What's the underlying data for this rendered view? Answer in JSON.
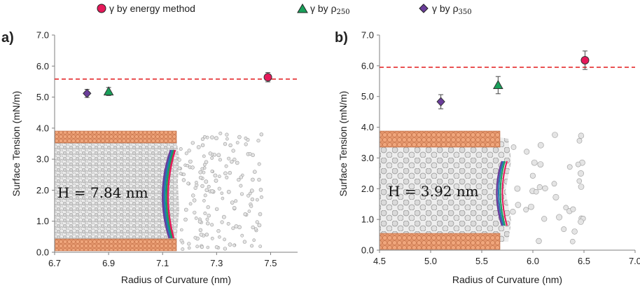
{
  "legend": {
    "energy": "γ by energy method",
    "rho250_prefix": "γ by ρ",
    "rho250_sub": "250",
    "rho350_prefix": "γ by ρ",
    "rho350_sub": "350"
  },
  "colors": {
    "energy": "#e6195a",
    "rho250": "#19a05a",
    "rho350": "#6a3d9a",
    "reference_line": "#e31a1c",
    "wall": "#e8946a",
    "molecule": "#d9d9d9"
  },
  "chart_data": [
    {
      "type": "scatter",
      "panel_label": "a)",
      "xlabel": "Radius of Curvature (nm)",
      "ylabel": "Surface Tension  (mN/m)",
      "xlim": [
        6.7,
        7.6
      ],
      "ylim": [
        0.0,
        7.0
      ],
      "x_ticks": [
        "6.7",
        "6.9",
        "7.1",
        "7.3",
        "7.5"
      ],
      "y_ticks": [
        "0.0",
        "1.0",
        "2.0",
        "3.0",
        "4.0",
        "5.0",
        "6.0",
        "7.0"
      ],
      "reference_line": 5.58,
      "inset_label": "H = 7.84 nm",
      "series": [
        {
          "name": "γ by energy method",
          "marker": "circle",
          "x": [
            7.49
          ],
          "y": [
            5.64
          ],
          "err": [
            0.15
          ]
        },
        {
          "name": "γ by ρ250",
          "marker": "triangle",
          "x": [
            6.9
          ],
          "y": [
            5.18
          ],
          "err": [
            0.13
          ]
        },
        {
          "name": "γ by ρ350",
          "marker": "diamond",
          "x": [
            6.82
          ],
          "y": [
            5.12
          ],
          "err": [
            0.13
          ]
        }
      ]
    },
    {
      "type": "scatter",
      "panel_label": "b)",
      "xlabel": "Radius of Curvature (nm)",
      "ylabel": "Surface Tension  (mN/m)",
      "xlim": [
        4.5,
        7.0
      ],
      "ylim": [
        0.0,
        7.0
      ],
      "x_ticks": [
        "4.5",
        "5.0",
        "5.5",
        "6.0",
        "6.5",
        "7.0"
      ],
      "y_ticks": [
        "0.0",
        "1.0",
        "2.0",
        "3.0",
        "4.0",
        "5.0",
        "6.0",
        "7.0"
      ],
      "reference_line": 5.95,
      "inset_label": "H = 3.92 nm",
      "series": [
        {
          "name": "γ by energy method",
          "marker": "circle",
          "x": [
            6.51
          ],
          "y": [
            6.18
          ],
          "err": [
            0.3
          ]
        },
        {
          "name": "γ by ρ250",
          "marker": "triangle",
          "x": [
            5.66
          ],
          "y": [
            5.37
          ],
          "err": [
            0.28
          ]
        },
        {
          "name": "γ by ρ350",
          "marker": "diamond",
          "x": [
            5.1
          ],
          "y": [
            4.83
          ],
          "err": [
            0.23
          ]
        }
      ]
    }
  ]
}
